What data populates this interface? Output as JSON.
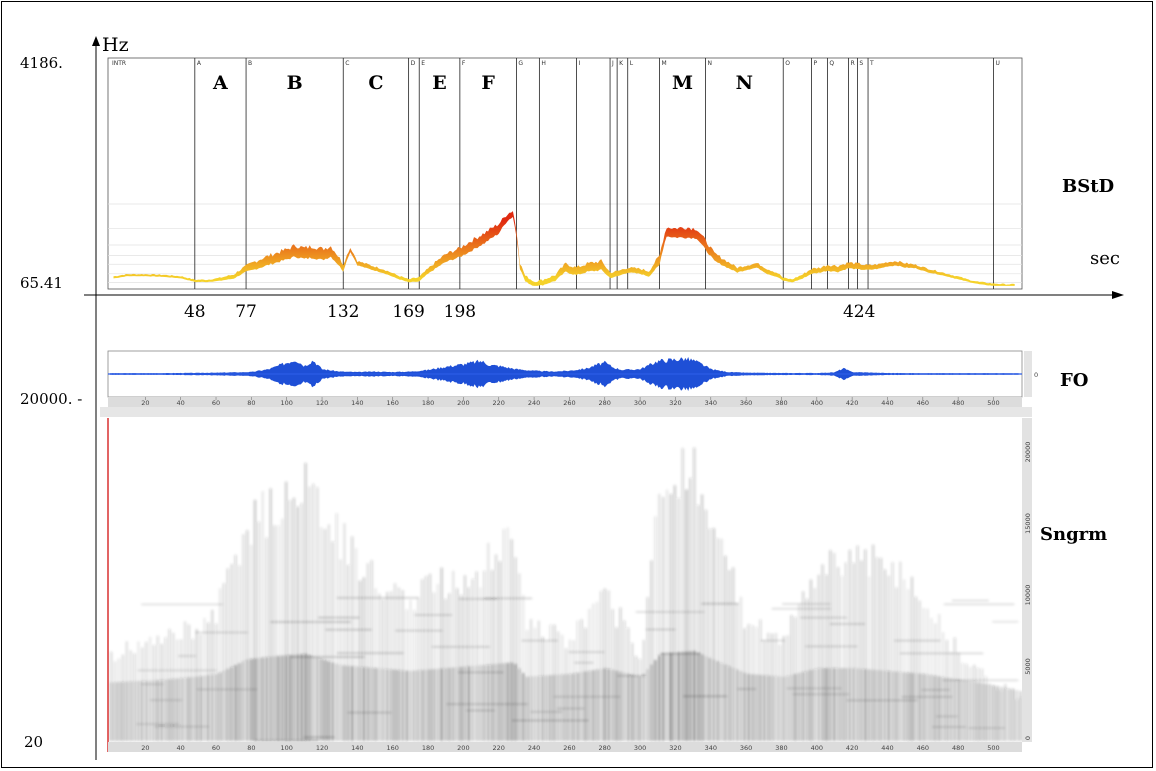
{
  "chart_data": [
    {
      "type": "area",
      "name_label": "BStD",
      "y_unit_label": "Hz",
      "x_unit_label": "sec",
      "y_top_label": "4186.",
      "y_bottom_label": "65.41",
      "x_tick_labels": [
        "48",
        "77",
        "132",
        "169",
        "198",
        "424"
      ],
      "x_tick_values": [
        48,
        77,
        132,
        169,
        198,
        424
      ],
      "big_section_letters": [
        "A",
        "B",
        "C",
        "E",
        "F",
        "M",
        "N"
      ],
      "segments": [
        {
          "label": "INTR",
          "start": 0
        },
        {
          "label": "A",
          "start": 48
        },
        {
          "label": "B",
          "start": 77
        },
        {
          "label": "C",
          "start": 132
        },
        {
          "label": "D",
          "start": 169
        },
        {
          "label": "E",
          "start": 175
        },
        {
          "label": "F",
          "start": 198
        },
        {
          "label": "G",
          "start": 230
        },
        {
          "label": "H",
          "start": 243
        },
        {
          "label": "I",
          "start": 264
        },
        {
          "label": "J",
          "start": 283
        },
        {
          "label": "K",
          "start": 287
        },
        {
          "label": "L",
          "start": 293
        },
        {
          "label": "M",
          "start": 311
        },
        {
          "label": "N",
          "start": 337
        },
        {
          "label": "O",
          "start": 381
        },
        {
          "label": "P",
          "start": 397
        },
        {
          "label": "Q",
          "start": 406
        },
        {
          "label": "R",
          "start": 418
        },
        {
          "label": "S",
          "start": 423
        },
        {
          "label": "T",
          "start": 429
        },
        {
          "label": "U",
          "start": 500
        }
      ],
      "x": [
        0,
        10,
        20,
        30,
        40,
        48,
        55,
        62,
        70,
        77,
        82,
        90,
        100,
        105,
        110,
        115,
        120,
        125,
        132,
        136,
        140,
        148,
        155,
        162,
        169,
        175,
        180,
        185,
        190,
        198,
        205,
        212,
        220,
        225,
        228,
        232,
        235,
        240,
        245,
        252,
        258,
        264,
        270,
        278,
        283,
        287,
        293,
        300,
        305,
        311,
        315,
        320,
        326,
        332,
        337,
        342,
        348,
        355,
        360,
        366,
        372,
        378,
        381,
        386,
        392,
        397,
        402,
        406,
        412,
        418,
        423,
        429,
        435,
        440,
        445,
        450,
        456,
        462,
        468,
        474,
        480,
        486,
        492,
        500,
        508,
        515
      ],
      "y_center": [
        76,
        80,
        80,
        79,
        77,
        72,
        72,
        74,
        78,
        90,
        96,
        106,
        118,
        126,
        120,
        124,
        118,
        125,
        92,
        128,
        100,
        92,
        86,
        78,
        72,
        74,
        86,
        98,
        110,
        122,
        140,
        160,
        190,
        235,
        250,
        95,
        75,
        68,
        70,
        76,
        92,
        86,
        92,
        96,
        80,
        82,
        88,
        86,
        82,
        105,
        180,
        176,
        178,
        174,
        140,
        112,
        100,
        88,
        92,
        96,
        86,
        80,
        74,
        72,
        78,
        86,
        88,
        92,
        90,
        96,
        94,
        92,
        94,
        98,
        100,
        96,
        94,
        88,
        84,
        80,
        76,
        72,
        69,
        67,
        66,
        66
      ],
      "y_spread": [
        3,
        3,
        3,
        3,
        3,
        3,
        3,
        4,
        6,
        10,
        14,
        18,
        22,
        26,
        24,
        26,
        24,
        24,
        12,
        10,
        8,
        7,
        6,
        5,
        4,
        6,
        8,
        12,
        16,
        20,
        26,
        30,
        34,
        30,
        28,
        10,
        8,
        6,
        7,
        8,
        14,
        12,
        14,
        16,
        8,
        8,
        8,
        8,
        8,
        18,
        30,
        30,
        34,
        30,
        24,
        16,
        12,
        8,
        8,
        8,
        8,
        6,
        4,
        4,
        6,
        8,
        8,
        10,
        10,
        10,
        10,
        8,
        8,
        8,
        8,
        8,
        6,
        6,
        5,
        4,
        4,
        3,
        3,
        3,
        3,
        3
      ],
      "ylim_hz": [
        65.41,
        4186
      ]
    },
    {
      "type": "area",
      "name_label": "FO",
      "y_label_left": "20000. -",
      "x_tick_labels": [
        "20",
        "40",
        "60",
        "80",
        "100",
        "120",
        "140",
        "160",
        "180",
        "200",
        "220",
        "240",
        "260",
        "280",
        "300",
        "320",
        "340",
        "360",
        "380",
        "400",
        "420",
        "440",
        "460",
        "480",
        "500"
      ],
      "right_tick_label": "0",
      "amp_x": [
        0,
        20,
        40,
        60,
        80,
        90,
        100,
        105,
        110,
        115,
        120,
        130,
        140,
        150,
        160,
        170,
        180,
        190,
        200,
        210,
        215,
        220,
        230,
        240,
        250,
        260,
        270,
        275,
        280,
        285,
        290,
        300,
        310,
        320,
        325,
        330,
        335,
        340,
        350,
        360,
        380,
        400,
        410,
        415,
        420,
        440,
        460,
        480,
        500,
        515
      ],
      "amp_y": [
        0.05,
        0.05,
        0.06,
        0.08,
        0.12,
        0.3,
        0.7,
        0.9,
        0.5,
        0.85,
        0.3,
        0.15,
        0.12,
        0.15,
        0.12,
        0.15,
        0.25,
        0.45,
        0.6,
        0.8,
        0.55,
        0.5,
        0.3,
        0.2,
        0.15,
        0.2,
        0.35,
        0.55,
        0.7,
        0.4,
        0.25,
        0.3,
        0.8,
        0.9,
        0.95,
        0.85,
        0.6,
        0.3,
        0.12,
        0.08,
        0.06,
        0.06,
        0.1,
        0.35,
        0.12,
        0.06,
        0.05,
        0.05,
        0.05,
        0.04
      ]
    },
    {
      "type": "heatmap",
      "name_label": "Sngrm",
      "y_bottom_label": "20",
      "right_tick_labels": [
        "20000",
        "15000",
        "10000",
        "5000",
        "0"
      ],
      "x_tick_labels": [
        "20",
        "40",
        "60",
        "80",
        "100",
        "120",
        "140",
        "160",
        "180",
        "200",
        "220",
        "240",
        "260",
        "280",
        "300",
        "320",
        "340",
        "360",
        "380",
        "400",
        "420",
        "440",
        "460",
        "480",
        "500"
      ],
      "density_x": [
        0,
        30,
        48,
        60,
        77,
        90,
        110,
        130,
        150,
        169,
        190,
        210,
        228,
        235,
        260,
        280,
        300,
        311,
        330,
        337,
        360,
        381,
        400,
        420,
        440,
        460,
        480,
        500,
        515
      ],
      "density_top": [
        0.3,
        0.35,
        0.4,
        0.45,
        0.75,
        0.8,
        0.9,
        0.7,
        0.55,
        0.5,
        0.55,
        0.6,
        0.75,
        0.4,
        0.35,
        0.5,
        0.3,
        0.9,
        0.95,
        0.85,
        0.4,
        0.35,
        0.6,
        0.65,
        0.6,
        0.5,
        0.3,
        0.2,
        0.15
      ],
      "density_strength": [
        0.35,
        0.4,
        0.45,
        0.5,
        0.75,
        0.8,
        0.85,
        0.65,
        0.6,
        0.55,
        0.6,
        0.65,
        0.7,
        0.45,
        0.5,
        0.6,
        0.45,
        0.85,
        0.9,
        0.8,
        0.5,
        0.45,
        0.6,
        0.6,
        0.55,
        0.5,
        0.4,
        0.3,
        0.2
      ]
    }
  ]
}
